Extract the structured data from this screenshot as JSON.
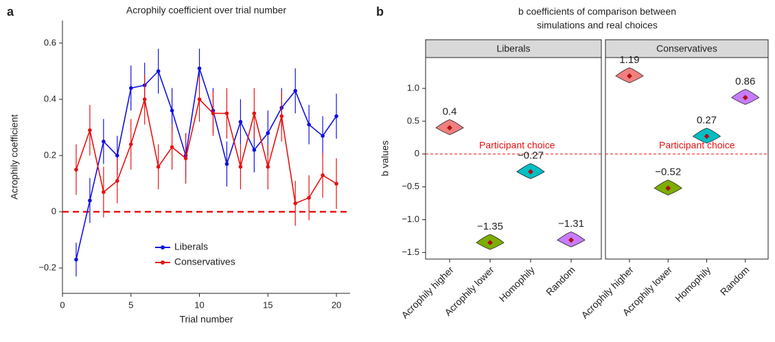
{
  "chart_data": [
    {
      "type": "line",
      "panel_label": "a",
      "title": "Acrophily coefficient over trial number",
      "x_label": "Trial number",
      "y_label": "Acrophily coefficient",
      "x": [
        1,
        2,
        3,
        4,
        5,
        6,
        7,
        8,
        9,
        10,
        11,
        12,
        13,
        14,
        15,
        16,
        17,
        18,
        19,
        20
      ],
      "series": [
        {
          "name": "Liberals",
          "color": "#1010e0",
          "values": [
            -0.17,
            0.04,
            0.25,
            0.2,
            0.44,
            0.45,
            0.5,
            0.36,
            0.2,
            0.51,
            0.36,
            0.17,
            0.32,
            0.22,
            0.28,
            0.37,
            0.43,
            0.31,
            0.27,
            0.34
          ],
          "errors": [
            0.06,
            0.08,
            0.08,
            0.07,
            0.08,
            0.08,
            0.08,
            0.08,
            0.08,
            0.07,
            0.08,
            0.08,
            0.08,
            0.08,
            0.08,
            0.07,
            0.08,
            0.07,
            0.07,
            0.08
          ]
        },
        {
          "name": "Conservatives",
          "color": "#e81010",
          "values": [
            0.15,
            0.29,
            0.07,
            0.11,
            0.24,
            0.4,
            0.16,
            0.23,
            0.19,
            0.4,
            0.35,
            0.35,
            0.16,
            0.35,
            0.16,
            0.34,
            0.03,
            0.05,
            0.13,
            0.1
          ],
          "errors": [
            0.09,
            0.09,
            0.09,
            0.08,
            0.09,
            0.09,
            0.08,
            0.08,
            0.09,
            0.08,
            0.08,
            0.09,
            0.08,
            0.09,
            0.08,
            0.09,
            0.08,
            0.08,
            0.08,
            0.09
          ]
        }
      ],
      "xlim": [
        0,
        21
      ],
      "ylim": [
        -0.29,
        0.68
      ],
      "xticks": [
        0,
        5,
        10,
        15,
        20
      ],
      "yticks": [
        {
          "value": -0.2,
          "label": "−0.2"
        },
        0,
        0.2,
        0.4,
        0.6
      ],
      "reference_line": {
        "y": 0,
        "color": "#e81010"
      },
      "legend": "lower center"
    },
    {
      "type": "violin",
      "panel_label": "b",
      "title": [
        "b coefficients of comparison between",
        "simulations and real choices"
      ],
      "y_label": "b values",
      "categories": [
        "Acrophily higher",
        "Acrophily lower",
        "Homophily",
        "Random"
      ],
      "colors": [
        "#f08080",
        "#7cae00",
        "#00bfc4",
        "#c77cff"
      ],
      "facets": [
        {
          "name": "Liberals",
          "values": [
            0.4,
            -1.35,
            -0.27,
            -1.31
          ],
          "value_labels": [
            "0.4",
            "−1.35",
            "−0.27",
            "−1.31"
          ]
        },
        {
          "name": "Conservatives",
          "values": [
            1.19,
            -0.52,
            0.27,
            0.86
          ],
          "value_labels": [
            "1.19",
            "−0.52",
            "0.27",
            "0.86"
          ]
        }
      ],
      "ylim": [
        -1.6,
        1.47
      ],
      "yticks": [
        {
          "value": -1.5,
          "label": "−1.5"
        },
        {
          "value": -1.0,
          "label": "−1.0"
        },
        {
          "value": -0.5,
          "label": "−0.5"
        },
        0,
        0.5,
        {
          "value": 1.0,
          "label": "1.0"
        }
      ],
      "reference_line": {
        "y": 0,
        "color": "#e81010"
      },
      "reference_label": "Participant choice"
    }
  ]
}
